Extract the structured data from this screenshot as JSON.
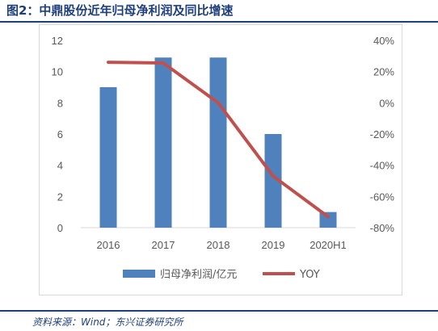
{
  "header": {
    "title": "图2：中鼎股份近年归母净利润及同比增速"
  },
  "footer": {
    "source": "资料来源：Wind；东兴证券研究所"
  },
  "colors": {
    "bar": "#4f81bd",
    "line": "#c0504d",
    "title": "#1f3f7a",
    "axis_text": "#595959"
  },
  "chart_data": {
    "type": "bar",
    "categories": [
      "2016",
      "2017",
      "2018",
      "2019",
      "2020H1"
    ],
    "series": [
      {
        "name": "归母净利润/亿元",
        "type": "bar",
        "axis": "left",
        "values": [
          9.0,
          10.9,
          10.9,
          6.0,
          1.0
        ]
      },
      {
        "name": "YOY",
        "type": "line",
        "axis": "right",
        "values": [
          26.0,
          25.5,
          0.0,
          -47.0,
          -73.0
        ]
      }
    ],
    "y_left": {
      "ylim": [
        0,
        12
      ],
      "ticks": [
        "0",
        "2",
        "4",
        "6",
        "8",
        "10",
        "12"
      ]
    },
    "y_right": {
      "ylim": [
        -80,
        40
      ],
      "ticks": [
        "-80%",
        "-60%",
        "-40%",
        "-20%",
        "0%",
        "20%",
        "40%"
      ]
    },
    "grid": false,
    "legend": "bottom"
  }
}
